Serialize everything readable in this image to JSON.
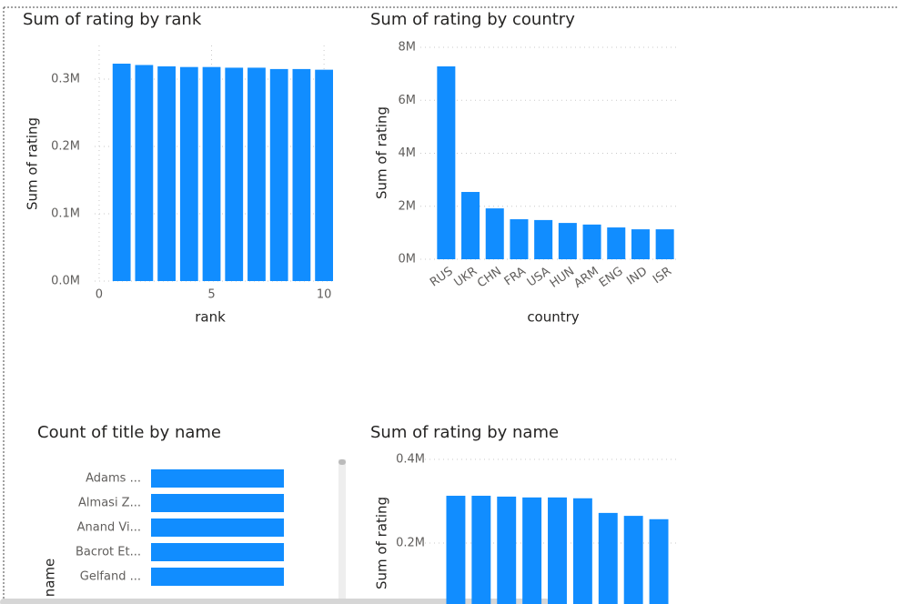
{
  "chart_data": [
    {
      "type": "bar",
      "title": "Sum of rating by rank",
      "x": [
        1,
        2,
        3,
        4,
        5,
        6,
        7,
        8,
        9,
        10
      ],
      "values": [
        323000,
        321000,
        319000,
        318000,
        318000,
        317000,
        317000,
        315000,
        315000,
        314000
      ],
      "color": "#118DFF",
      "xlabel": "rank",
      "ylabel": "Sum of rating",
      "xlim": [
        -0.2,
        10.4
      ],
      "xticks": [
        0,
        5,
        10
      ],
      "ylim": [
        0,
        350000
      ],
      "yticks": [
        {
          "value": 0,
          "label": "0.0M"
        },
        {
          "value": 100000,
          "label": "0.1M"
        },
        {
          "value": 200000,
          "label": "0.2M"
        },
        {
          "value": 300000,
          "label": "0.3M"
        }
      ],
      "grid": true
    },
    {
      "type": "bar",
      "title": "Sum of rating by country",
      "categories": [
        "RUS",
        "UKR",
        "CHN",
        "FRA",
        "USA",
        "HUN",
        "ARM",
        "ENG",
        "IND",
        "ISR"
      ],
      "values": [
        7280000,
        2540000,
        1920000,
        1510000,
        1480000,
        1370000,
        1310000,
        1200000,
        1130000,
        1130000
      ],
      "color": "#118DFF",
      "xlabel": "country",
      "ylabel": "Sum of rating",
      "ylim": [
        0,
        8000000
      ],
      "yticks": [
        {
          "value": 0,
          "label": "0M"
        },
        {
          "value": 2000000,
          "label": "2M"
        },
        {
          "value": 4000000,
          "label": "4M"
        },
        {
          "value": 6000000,
          "label": "6M"
        },
        {
          "value": 8000000,
          "label": "8M"
        }
      ],
      "grid": true
    },
    {
      "type": "barh",
      "title": "Count of title by name",
      "categories": [
        "Adams ...",
        "Almasi Z...",
        "Anand Vi...",
        "Bacrot Et...",
        "Gelfand ..."
      ],
      "values": [
        1,
        1,
        1,
        1,
        1
      ],
      "color": "#118DFF",
      "ylabel": "name",
      "xlim": [
        0,
        1
      ]
    },
    {
      "type": "bar",
      "title": "Sum of rating by name",
      "categories": [
        null,
        null,
        null,
        null,
        null,
        null,
        null,
        null,
        null
      ],
      "values": [
        313000,
        313000,
        311000,
        309000,
        309000,
        307000,
        272000,
        265000,
        257000
      ],
      "color": "#118DFF",
      "ylabel": "Sum of rating",
      "ylim": [
        0,
        400000
      ],
      "yticks": [
        {
          "value": 200000,
          "label": "0.2M"
        },
        {
          "value": 400000,
          "label": "0.4M"
        }
      ],
      "grid": true
    }
  ]
}
